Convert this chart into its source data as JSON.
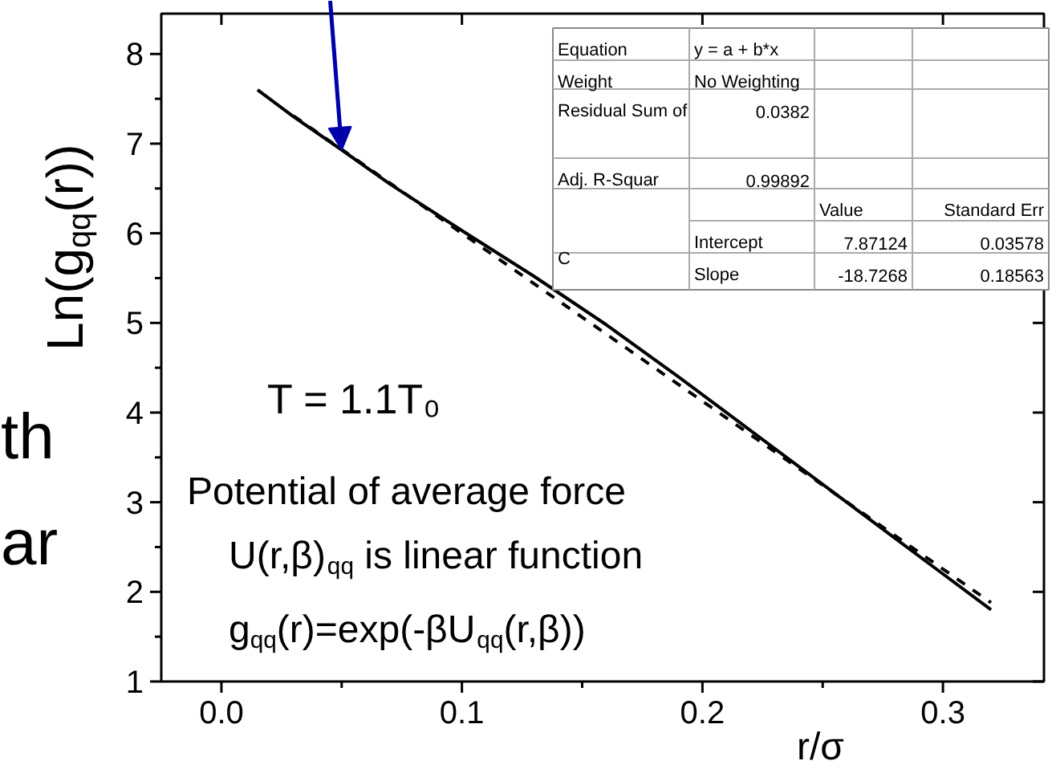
{
  "chart_data": {
    "type": "line",
    "ylabel": "Ln(g$_{qq}$(r))",
    "xlabel": "r/σ",
    "xlim": [
      -0.025,
      0.342
    ],
    "ylim": [
      1,
      8.45
    ],
    "xticks": [
      {
        "value": 0,
        "label": "0.0"
      },
      0.1,
      0.2,
      0.3
    ],
    "yticks": [
      1,
      2,
      3,
      4,
      5,
      6,
      7,
      8
    ],
    "grid": false,
    "legend": false,
    "series": [
      {
        "color": "#000000",
        "line_style": "solid",
        "x": [
          0.015,
          0.03,
          0.05,
          0.07,
          0.1,
          0.13,
          0.16,
          0.19,
          0.22,
          0.25,
          0.28,
          0.3,
          0.32
        ],
        "values": [
          7.6,
          7.3,
          6.93,
          6.55,
          6.03,
          5.52,
          4.98,
          4.4,
          3.8,
          3.2,
          2.6,
          2.2,
          1.8
        ]
      },
      {
        "color": "#000000",
        "line_style": "dashed",
        "x": [
          0.03,
          0.32
        ],
        "values": [
          7.31,
          1.88
        ]
      }
    ],
    "annotations": [
      "T = 1.1T₀",
      "Potential of average force",
      "U(r,β)$_{qq}$ is linear function",
      "g$_{qq}$(r)=exp(-βU$_{qq}$(r,β))",
      "th",
      "ar",
      "Equation",
      "y = a + b*x",
      "Weight",
      "No Weighting",
      "Residual Sum of",
      "0.0382",
      "Adj. R-Squar",
      "0.99892",
      "Value",
      "Standard Err",
      "C",
      "Intercept",
      "7.87124",
      "0.03578",
      "Slope",
      "-18.7268",
      "0.18563"
    ]
  }
}
